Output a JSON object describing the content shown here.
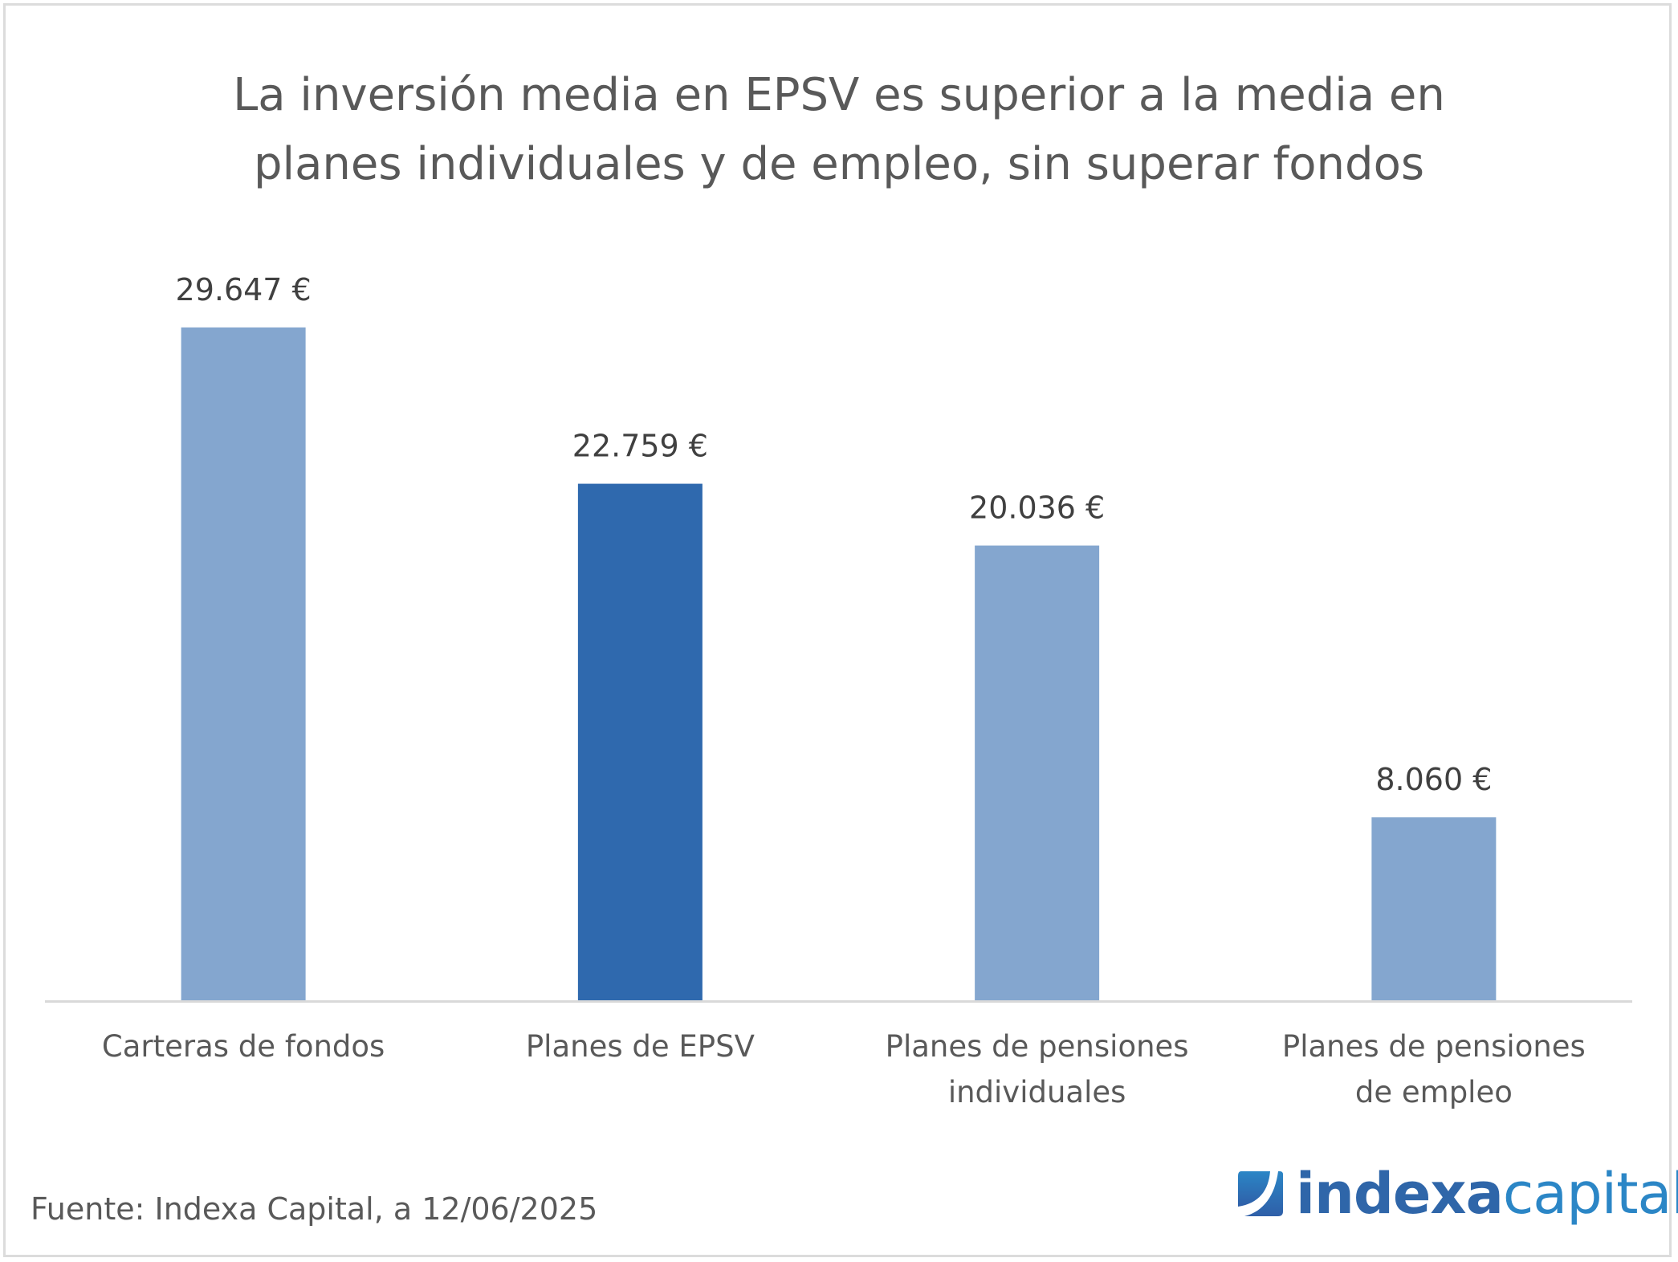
{
  "title": {
    "line1": "La inversión media en EPSV es superior a la media en",
    "line2": "planes individuales y de empleo, sin superar fondos"
  },
  "source": "Fuente: Indexa Capital, a 12/06/2025",
  "logo": {
    "brand_bold": "indexa",
    "brand_light": "capital",
    "icon": "indexa-logo-icon"
  },
  "colors": {
    "bar_default": "#84a6cf",
    "bar_highlight": "#2f69ae",
    "axis": "#d9d9d9",
    "text": "#595959",
    "label": "#404040"
  },
  "chart_data": {
    "type": "bar",
    "title": "La inversión media en EPSV es superior a la media en planes individuales y de empleo, sin superar fondos",
    "xlabel": "",
    "ylabel": "",
    "ylim": [
      0,
      35000
    ],
    "grid": false,
    "legend": "none",
    "categories": [
      [
        "Carteras de fondos"
      ],
      [
        "Planes de EPSV"
      ],
      [
        "Planes de pensiones",
        "individuales"
      ],
      [
        "Planes de pensiones",
        "de empleo"
      ]
    ],
    "values": [
      29647,
      22759,
      20036,
      8060
    ],
    "data_labels": [
      "29.647 €",
      "22.759 €",
      "20.036 €",
      "8.060 €"
    ],
    "highlight_index": 1
  }
}
